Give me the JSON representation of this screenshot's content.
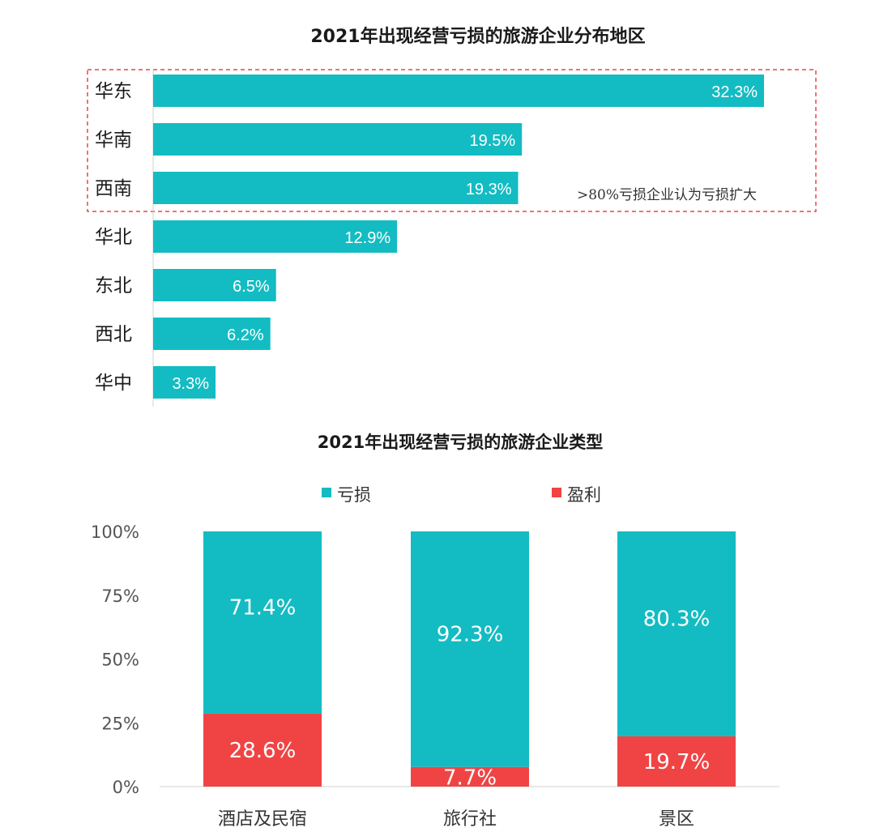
{
  "chart_data": [
    {
      "type": "bar",
      "orientation": "horizontal",
      "title": "2021年出现经营亏损的旅游企业分布地区",
      "categories": [
        "华东",
        "华南",
        "西南",
        "华北",
        "东北",
        "西北",
        "华中"
      ],
      "values": [
        32.3,
        19.5,
        19.3,
        12.9,
        6.5,
        6.2,
        3.3
      ],
      "value_labels": [
        "32.3%",
        "19.5%",
        "19.3%",
        "12.9%",
        "6.5%",
        "6.2%",
        "3.3%"
      ],
      "annotation": ">80%亏损企业认为亏损扩大",
      "highlight_categories": [
        "华东",
        "华南",
        "西南"
      ],
      "color": "#13bcc2",
      "grid": false
    },
    {
      "type": "bar",
      "stacked": true,
      "title": "2021年出现经营亏损的旅游企业类型",
      "categories": [
        "酒店及民宿",
        "旅行社",
        "景区"
      ],
      "series": [
        {
          "name": "盈利",
          "values": [
            28.6,
            7.7,
            19.7
          ],
          "labels": [
            "28.6%",
            "7.7%",
            "19.7%"
          ],
          "color": "#f04444"
        },
        {
          "name": "亏损",
          "values": [
            71.4,
            92.3,
            80.3
          ],
          "labels": [
            "71.4%",
            "92.3%",
            "80.3%"
          ],
          "color": "#13bcc2"
        }
      ],
      "legend": [
        {
          "name": "亏损",
          "color": "#13bcc2"
        },
        {
          "name": "盈利",
          "color": "#f04444"
        }
      ],
      "legend_position": "top",
      "ylim": [
        0,
        100
      ],
      "yticks": [
        0,
        25,
        50,
        75,
        100
      ],
      "ytick_labels": [
        "0%",
        "25%",
        "50%",
        "75%",
        "100%"
      ],
      "grid": false
    }
  ]
}
